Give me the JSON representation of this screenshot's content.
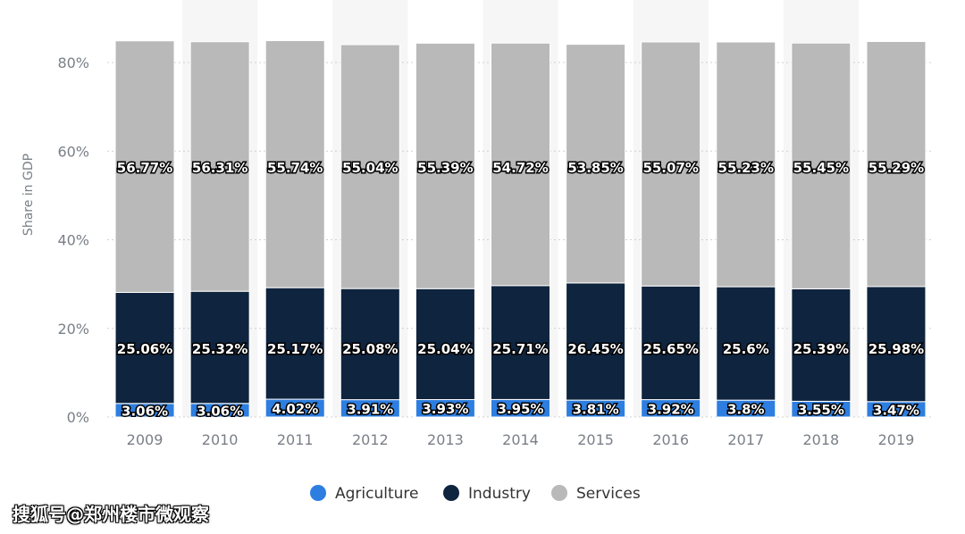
{
  "chart_data": {
    "type": "bar",
    "stacked": true,
    "categories": [
      "2009",
      "2010",
      "2011",
      "2012",
      "2013",
      "2014",
      "2015",
      "2016",
      "2017",
      "2018",
      "2019"
    ],
    "series": [
      {
        "name": "Agriculture",
        "color": "#2d7ee0",
        "values": [
          3.06,
          3.06,
          4.02,
          3.91,
          3.93,
          3.95,
          3.81,
          3.92,
          3.8,
          3.55,
          3.47
        ],
        "labels": [
          "3.06%",
          "3.06%",
          "4.02%",
          "3.91%",
          "3.93%",
          "3.95%",
          "3.81%",
          "3.92%",
          "3.8%",
          "3.55%",
          "3.47%"
        ]
      },
      {
        "name": "Industry",
        "color": "#0f243e",
        "values": [
          25.06,
          25.32,
          25.17,
          25.08,
          25.04,
          25.71,
          26.45,
          25.65,
          25.6,
          25.39,
          25.98
        ],
        "labels": [
          "25.06%",
          "25.32%",
          "25.17%",
          "25.08%",
          "25.04%",
          "25.71%",
          "26.45%",
          "25.65%",
          "25.6%",
          "25.39%",
          "25.98%"
        ]
      },
      {
        "name": "Services",
        "color": "#b9b9b9",
        "values": [
          56.77,
          56.31,
          55.74,
          55.04,
          55.39,
          54.72,
          53.85,
          55.07,
          55.23,
          55.45,
          55.29
        ],
        "labels": [
          "56.77%",
          "56.31%",
          "55.74%",
          "55.04%",
          "55.39%",
          "54.72%",
          "53.85%",
          "55.07%",
          "55.23%",
          "55.45%",
          "55.29%"
        ]
      }
    ],
    "ylabel": "Share in GDP",
    "ylim": [
      0,
      80
    ],
    "yticks": [
      0,
      20,
      40,
      60,
      80
    ],
    "yticklabels": [
      "0%",
      "20%",
      "40%",
      "60%",
      "80%"
    ],
    "grid": true,
    "legend_position": "bottom"
  },
  "watermark": "搜狐号@郑州楼市微观察"
}
